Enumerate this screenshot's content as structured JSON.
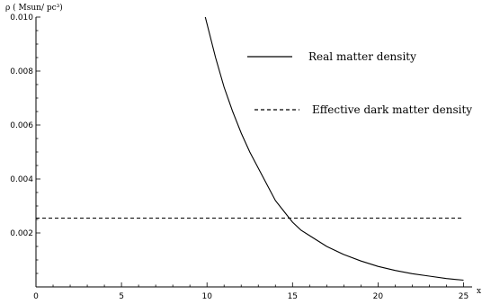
{
  "chart_data": {
    "type": "line",
    "title": "",
    "xlabel": "x",
    "ylabel": "ρ ( Msun/ pc³)",
    "xlim": [
      0,
      25.5
    ],
    "ylim": [
      0,
      0.01
    ],
    "x_ticks": [
      0,
      5,
      10,
      15,
      20,
      25
    ],
    "x_tick_labels": [
      "0",
      "5",
      "10",
      "15",
      "20",
      "25"
    ],
    "y_ticks": [
      0.002,
      0.004,
      0.006,
      0.008,
      0.01
    ],
    "y_tick_labels": [
      "0.002",
      "0.004",
      "0.006",
      "0.008",
      "0.010"
    ],
    "grid": false,
    "legend_position": "top-right",
    "series": [
      {
        "name": "Real matter density",
        "style": "solid",
        "color": "#000000",
        "x": [
          9.9,
          10.5,
          11,
          11.5,
          12,
          12.5,
          13,
          13.5,
          14,
          14.5,
          15,
          15.5,
          16,
          17,
          18,
          19,
          20,
          21,
          22,
          23,
          24,
          25
        ],
        "y": [
          0.01,
          0.0085,
          0.0074,
          0.0065,
          0.0057,
          0.005,
          0.0044,
          0.0038,
          0.0032,
          0.0028,
          0.0024,
          0.0021,
          0.0019,
          0.0015,
          0.0012,
          0.00096,
          0.00076,
          0.00061,
          0.00049,
          0.0004,
          0.00031,
          0.00025
        ]
      },
      {
        "name": "Effective dark matter density",
        "style": "dashed",
        "color": "#000000",
        "x": [
          0,
          25
        ],
        "y": [
          0.00255,
          0.00255
        ]
      }
    ]
  }
}
